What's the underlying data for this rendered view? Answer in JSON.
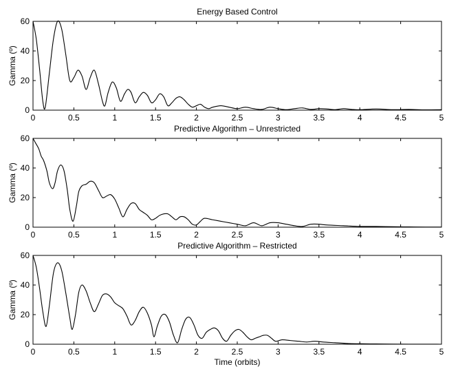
{
  "chart_data": [
    {
      "type": "line",
      "title": "Energy Based Control",
      "xlabel": "",
      "ylabel": "Gamma (º)",
      "xlim": [
        0,
        5
      ],
      "ylim": [
        0,
        60
      ],
      "xticks": [
        "0",
        "0.5",
        "1",
        "1.5",
        "2",
        "2.5",
        "3",
        "3.5",
        "4",
        "4.5",
        "5"
      ],
      "yticks": [
        "0",
        "20",
        "40",
        "60"
      ],
      "grid": false,
      "series": [
        {
          "color": "#000000",
          "x": [
            0,
            0.04,
            0.08,
            0.12,
            0.15,
            0.2,
            0.25,
            0.3,
            0.35,
            0.4,
            0.45,
            0.5,
            0.55,
            0.6,
            0.65,
            0.7,
            0.75,
            0.8,
            0.85,
            0.88,
            0.92,
            0.97,
            1.02,
            1.07,
            1.12,
            1.16,
            1.2,
            1.25,
            1.3,
            1.35,
            1.4,
            1.45,
            1.5,
            1.55,
            1.6,
            1.65,
            1.7,
            1.75,
            1.8,
            1.85,
            1.9,
            1.95,
            2.0,
            2.05,
            2.1,
            2.15,
            2.2,
            2.3,
            2.4,
            2.5,
            2.6,
            2.7,
            2.8,
            2.9,
            3.0,
            3.1,
            3.2,
            3.3,
            3.4,
            3.5,
            3.6,
            3.7,
            3.8,
            3.9,
            4.0,
            4.2,
            4.4,
            4.6,
            4.8,
            5.0
          ],
          "y": [
            60,
            48,
            28,
            6,
            2,
            25,
            48,
            60,
            55,
            38,
            20,
            22,
            27,
            23,
            14,
            22,
            27,
            18,
            6,
            3,
            12,
            19,
            15,
            6,
            11,
            14,
            12,
            5,
            9,
            12,
            10,
            5,
            7,
            11,
            9,
            3,
            5,
            8,
            9,
            7,
            4,
            2,
            3,
            4,
            2,
            1,
            2,
            3,
            2,
            1,
            2,
            1,
            0.5,
            2,
            1,
            0.3,
            1,
            1.5,
            0.5,
            1,
            0.8,
            0.3,
            1,
            0.5,
            0.3,
            0.8,
            0.3,
            0.5,
            0.2,
            0.3
          ]
        }
      ]
    },
    {
      "type": "line",
      "title": "Predictive Algorithm – Unrestricted",
      "xlabel": "",
      "ylabel": "Gamma (º)",
      "xlim": [
        0,
        5
      ],
      "ylim": [
        0,
        60
      ],
      "xticks": [
        "0",
        "0.5",
        "1",
        "1.5",
        "2",
        "2.5",
        "3",
        "3.5",
        "4",
        "4.5",
        "5"
      ],
      "yticks": [
        "0",
        "20",
        "40",
        "60"
      ],
      "grid": false,
      "series": [
        {
          "color": "#000000",
          "x": [
            0,
            0.03,
            0.07,
            0.1,
            0.13,
            0.17,
            0.2,
            0.24,
            0.27,
            0.3,
            0.34,
            0.38,
            0.42,
            0.45,
            0.49,
            0.53,
            0.56,
            0.6,
            0.65,
            0.7,
            0.75,
            0.8,
            0.85,
            0.9,
            0.95,
            1.0,
            1.05,
            1.1,
            1.15,
            1.2,
            1.25,
            1.3,
            1.35,
            1.4,
            1.45,
            1.5,
            1.55,
            1.6,
            1.65,
            1.7,
            1.75,
            1.8,
            1.85,
            1.9,
            1.95,
            2.0,
            2.05,
            2.1,
            2.2,
            2.3,
            2.4,
            2.5,
            2.6,
            2.7,
            2.8,
            2.9,
            3.0,
            3.1,
            3.2,
            3.3,
            3.4,
            3.5,
            3.6,
            3.8,
            4.0,
            4.2,
            4.4,
            4.6,
            4.8,
            5.0
          ],
          "y": [
            60,
            57,
            53,
            48,
            45,
            38,
            30,
            26,
            30,
            38,
            42,
            38,
            25,
            12,
            4,
            14,
            24,
            28,
            29,
            31,
            30,
            25,
            20,
            21,
            22,
            19,
            13,
            7,
            12,
            16,
            16,
            12,
            10,
            8,
            5,
            6,
            8,
            9,
            9,
            7,
            5,
            7,
            7,
            5,
            2,
            1.5,
            4,
            6,
            5,
            4,
            3,
            2,
            1,
            3,
            1,
            3,
            3,
            2,
            1,
            0.5,
            2,
            2,
            1.5,
            1,
            0.5,
            0.5,
            0.3,
            0.2,
            0.1,
            0.1
          ]
        }
      ]
    },
    {
      "type": "line",
      "title": "Predictive Algorithm – Restricted",
      "xlabel": "Time (orbits)",
      "ylabel": "Gamma (º)",
      "xlim": [
        0,
        5
      ],
      "ylim": [
        0,
        60
      ],
      "xticks": [
        "0",
        "0.5",
        "1",
        "1.5",
        "2",
        "2.5",
        "3",
        "3.5",
        "4",
        "4.5",
        "5"
      ],
      "yticks": [
        "0",
        "20",
        "40",
        "60"
      ],
      "grid": false,
      "series": [
        {
          "color": "#000000",
          "x": [
            0,
            0.04,
            0.08,
            0.12,
            0.16,
            0.2,
            0.25,
            0.3,
            0.35,
            0.4,
            0.45,
            0.48,
            0.52,
            0.56,
            0.6,
            0.65,
            0.7,
            0.75,
            0.8,
            0.85,
            0.9,
            0.95,
            1.0,
            1.05,
            1.1,
            1.15,
            1.2,
            1.25,
            1.3,
            1.35,
            1.4,
            1.45,
            1.48,
            1.52,
            1.57,
            1.62,
            1.67,
            1.72,
            1.77,
            1.82,
            1.87,
            1.92,
            1.97,
            2.02,
            2.07,
            2.12,
            2.17,
            2.22,
            2.27,
            2.32,
            2.37,
            2.42,
            2.47,
            2.52,
            2.57,
            2.62,
            2.67,
            2.72,
            2.77,
            2.82,
            2.87,
            2.92,
            2.97,
            3.05,
            3.15,
            3.25,
            3.35,
            3.45,
            3.55,
            3.7,
            3.85,
            4.0,
            4.2,
            4.4,
            4.6,
            4.8,
            5.0
          ],
          "y": [
            60,
            52,
            38,
            22,
            12,
            26,
            48,
            55,
            50,
            35,
            18,
            10,
            20,
            35,
            40,
            36,
            28,
            22,
            27,
            33,
            34,
            32,
            28,
            26,
            24,
            19,
            13,
            16,
            22,
            25,
            21,
            13,
            5,
            12,
            19,
            20,
            15,
            6,
            1,
            10,
            17,
            18,
            13,
            6,
            4,
            8,
            10,
            11,
            9,
            4,
            2,
            6,
            9,
            10,
            8,
            5,
            3,
            4,
            5,
            6,
            6,
            4,
            2,
            3,
            2.5,
            2,
            1.5,
            2,
            1.5,
            1,
            0.5,
            0.3,
            0.2,
            0.1,
            0.05,
            0.05,
            0
          ]
        }
      ]
    }
  ]
}
